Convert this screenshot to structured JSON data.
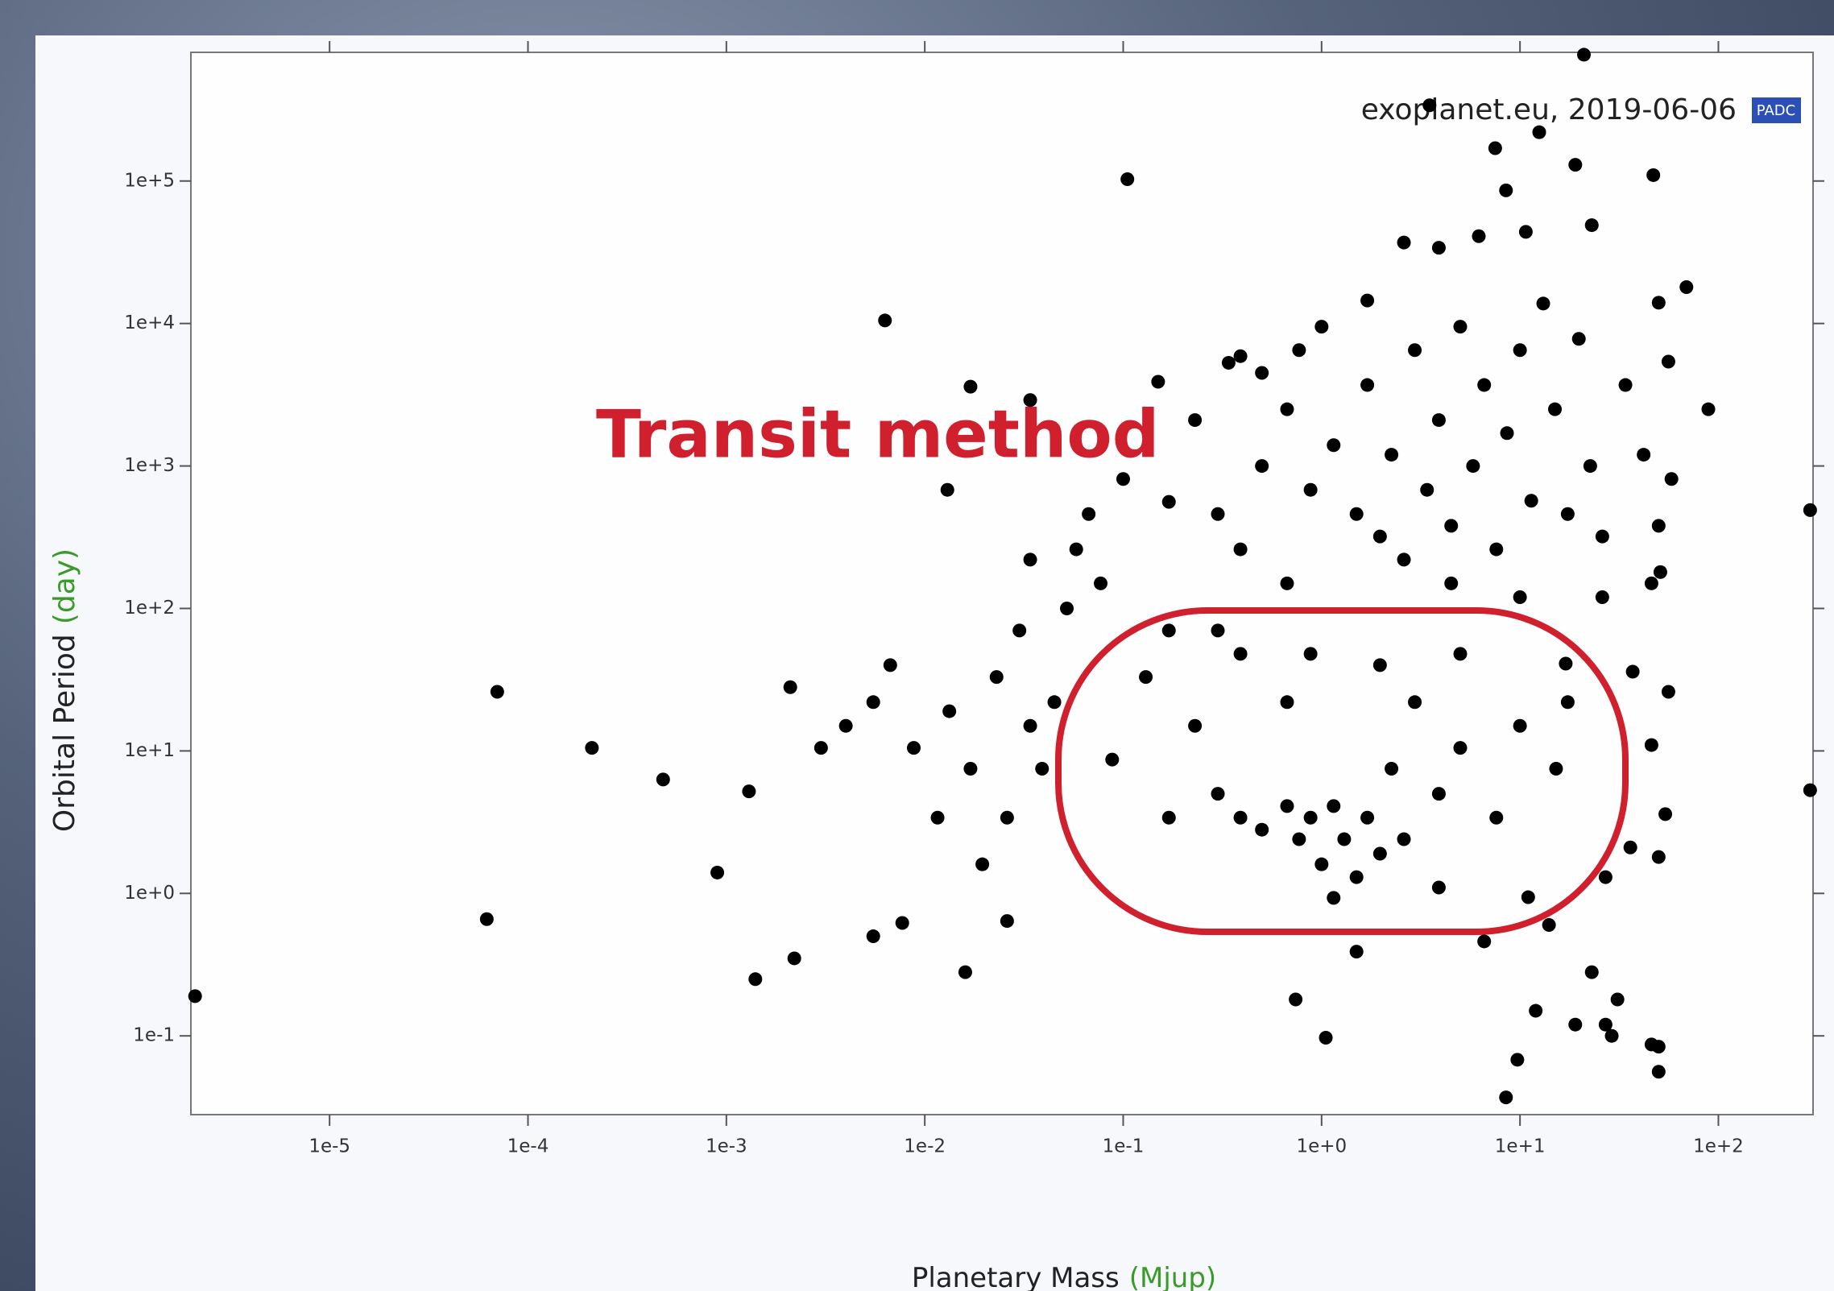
{
  "chart_data": {
    "type": "scatter",
    "annotation": "Transit method",
    "source": "exoplanet.eu, 2019-06-06",
    "logo": "PADC",
    "x_label": "Planetary Mass",
    "x_label_unit": "(Mjup)",
    "y_label": "Orbital Period",
    "y_label_unit": "(day)",
    "xscale": "log",
    "yscale": "log",
    "color": "#000000",
    "xlim": [
      2e-06,
      300
    ],
    "ylim": [
      0.028,
      800000
    ],
    "xticks": [
      {
        "value": 1e-05,
        "label": "1e-5"
      },
      {
        "value": 0.0001,
        "label": "1e-4"
      },
      {
        "value": 0.001,
        "label": "1e-3"
      },
      {
        "value": 0.01,
        "label": "1e-2"
      },
      {
        "value": 0.1,
        "label": "1e-1"
      },
      {
        "value": 1,
        "label": "1e+0"
      },
      {
        "value": 10,
        "label": "1e+1"
      },
      {
        "value": 100,
        "label": "1e+2"
      }
    ],
    "yticks": [
      {
        "value": 0.1,
        "label": "1e-1"
      },
      {
        "value": 1,
        "label": "1e+0"
      },
      {
        "value": 10,
        "label": "1e+1"
      },
      {
        "value": 100,
        "label": "1e+2"
      },
      {
        "value": 1000,
        "label": "1e+3"
      },
      {
        "value": 10000,
        "label": "1e+4"
      },
      {
        "value": 100000,
        "label": "1e+5"
      }
    ],
    "x": [
      2.1e-06,
      7e-05,
      6.2e-05,
      0.00021,
      0.00048,
      0.0009,
      0.0013,
      0.0014,
      0.0021,
      0.0022,
      0.0063,
      0.105,
      0.016,
      0.017,
      0.034,
      0.15,
      3.5,
      7.5,
      12.5,
      19,
      47,
      21,
      8.5,
      23,
      2.6,
      3.9,
      6.2,
      10.7,
      69,
      50,
      89,
      56,
      290,
      290,
      1.7,
      0.74,
      1.05,
      1.5,
      6.6,
      8.5,
      9.7,
      12,
      23,
      31,
      27,
      19,
      29,
      46,
      50,
      50,
      14,
      11,
      27,
      36,
      50,
      54,
      46,
      37,
      56,
      17,
      0.003,
      0.004,
      0.0055,
      0.0067,
      0.0088,
      0.0116,
      0.0133,
      0.017,
      0.023,
      0.026,
      0.03,
      0.034,
      0.039,
      0.045,
      0.052,
      0.0195,
      0.026,
      0.0077,
      0.0055,
      0.034,
      0.067,
      0.058,
      0.013,
      0.077,
      0.1,
      0.088,
      0.13,
      0.17,
      0.23,
      0.3,
      0.39,
      0.5,
      0.67,
      0.77,
      0.88,
      1,
      1.15,
      1.3,
      1.5,
      1.7,
      1.97,
      1.15,
      2.25,
      2.6,
      2.95,
      3.9,
      0.67,
      0.39,
      0.88,
      1.97,
      5,
      7.6,
      10,
      15.2,
      17.4,
      0.17,
      0.3,
      5,
      0.23,
      0.34,
      0.5,
      0.67,
      0.88,
      1.15,
      1.5,
      1.7,
      1.97,
      2.25,
      2.6,
      2.95,
      3.4,
      3.9,
      4.5,
      5,
      5.8,
      6.6,
      7.6,
      8.6,
      10,
      11.4,
      13.1,
      15,
      17.4,
      19.8,
      22.6,
      26,
      34,
      42,
      50,
      58,
      46,
      51,
      26,
      10,
      4.5,
      0.67,
      0.39,
      0.17,
      0.3,
      1,
      0.77,
      0.5,
      0.39,
      3.9
    ],
    "values": [
      0.19,
      26,
      0.66,
      10.5,
      6.3,
      1.4,
      5.2,
      0.25,
      28,
      0.35,
      10500,
      103000,
      0.28,
      3600,
      2900,
      3900,
      340000,
      170000,
      220000,
      130000,
      110000,
      770000,
      86000,
      49000,
      37000,
      34000,
      41000,
      44000,
      18000,
      14000,
      2500,
      5400,
      5.3,
      490,
      14500,
      0.18,
      0.097,
      0.39,
      0.46,
      0.037,
      0.068,
      0.15,
      0.28,
      0.18,
      0.12,
      0.12,
      0.1,
      0.087,
      0.084,
      0.056,
      0.6,
      0.94,
      1.3,
      2.1,
      1.8,
      3.6,
      11,
      36,
      26,
      41,
      10.5,
      15,
      22,
      40,
      10.5,
      3.4,
      19,
      7.5,
      33,
      3.4,
      70,
      15,
      7.5,
      22,
      100,
      1.6,
      0.64,
      0.62,
      0.5,
      220,
      460,
      260,
      680,
      150,
      810,
      8.7,
      33,
      3.4,
      15,
      5,
      3.4,
      2.8,
      4.1,
      2.4,
      3.4,
      1.6,
      4.1,
      2.4,
      1.3,
      3.4,
      1.9,
      0.93,
      7.5,
      2.4,
      22,
      5,
      22,
      48,
      48,
      40,
      10.5,
      3.4,
      15,
      7.5,
      22,
      70,
      70,
      48,
      2100,
      5300,
      1000,
      2500,
      680,
      1400,
      460,
      3700,
      320,
      1200,
      220,
      6500,
      680,
      2100,
      380,
      9500,
      1000,
      3700,
      260,
      1700,
      6500,
      570,
      13800,
      2500,
      460,
      7800,
      1000,
      320,
      3700,
      1200,
      380,
      810,
      150,
      180,
      120,
      120,
      150,
      150,
      260,
      560,
      460,
      9500,
      6500,
      4500,
      5900,
      1.1
    ]
  }
}
